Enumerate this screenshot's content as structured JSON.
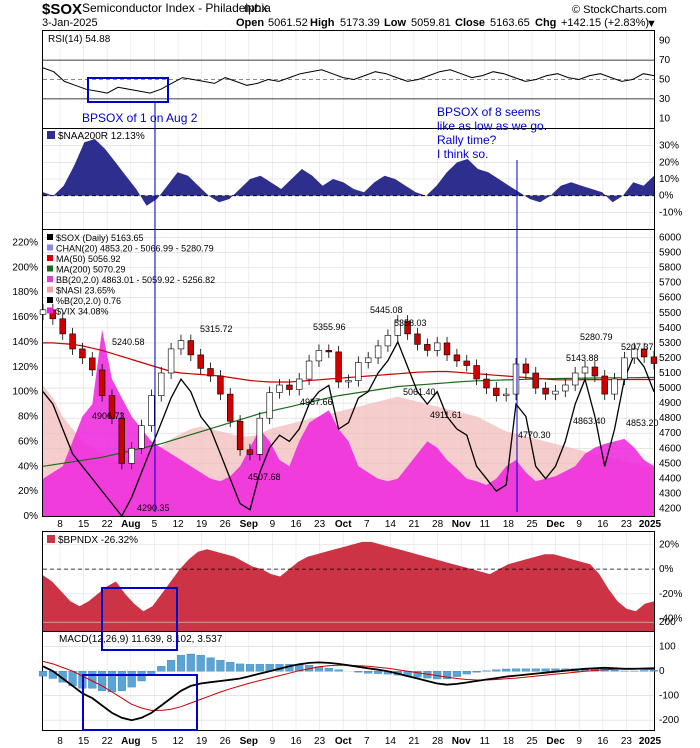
{
  "header": {
    "symbol": "$SOX",
    "name": "Semiconductor Index - Philadelphia",
    "exchange": "INDX",
    "date": "3-Jan-2025",
    "open_label": "Open",
    "open": "5061.52",
    "high_label": "High",
    "high": "5173.39",
    "low_label": "Low",
    "low": "5059.81",
    "close_label": "Close",
    "close": "5163.65",
    "chg_label": "Chg",
    "chg": "+142.15 (+2.83%)",
    "watermark": "© StockCharts.com",
    "down_arrow": "▼"
  },
  "annotations": {
    "left_note": "BPSOX of 1 on Aug 2",
    "right_note_lines": [
      "BPSOX of 8 seems",
      "like as low as we go.",
      "Rally time?",
      "I think so."
    ]
  },
  "x_axis_labels": [
    "8",
    "15",
    "22",
    "Aug",
    "5",
    "12",
    "19",
    "26",
    "Sep",
    "9",
    "16",
    "23",
    "Oct",
    "7",
    "14",
    "21",
    "28",
    "Nov",
    "11",
    "18",
    "25",
    "Dec",
    "9",
    "16",
    "23",
    "2025"
  ],
  "x_axis_bold": [
    "Aug",
    "Sep",
    "Oct",
    "Nov",
    "Dec",
    "2025"
  ],
  "colors": {
    "candle_up": "#ffffff",
    "candle_down": "#cc0000",
    "naa_fill": "#2e2e8f",
    "bpndx_fill": "#cc3344",
    "vix_fill": "#ee22dd",
    "macd_hist": "#5aa5d6",
    "annot_text": "#0000cc",
    "box": "#0000cc"
  },
  "chart_data": [
    {
      "panel": "rsi",
      "type": "line",
      "legend": "RSI(14) 54.88",
      "ylim": [
        0,
        100
      ],
      "y_ticks": [
        "90",
        "70",
        "50",
        "30",
        "10"
      ],
      "values": [
        62,
        58,
        48,
        44,
        40,
        38,
        36,
        42,
        40,
        38,
        36,
        40,
        46,
        52,
        50,
        48,
        46,
        52,
        48,
        44,
        46,
        50,
        48,
        52,
        56,
        58,
        60,
        56,
        52,
        50,
        54,
        58,
        56,
        52,
        48,
        50,
        54,
        58,
        60,
        56,
        52,
        54,
        58,
        56,
        52,
        48,
        50,
        54,
        56,
        52,
        50,
        54,
        56,
        52,
        48,
        50,
        56,
        54
      ]
    },
    {
      "panel": "naa200r",
      "type": "area",
      "legend": "$NAA200R 12.13%",
      "ylim": [
        -20,
        40
      ],
      "y_ticks": [
        "30%",
        "20%",
        "10%",
        "0%",
        "-10%"
      ],
      "values": [
        2,
        0,
        6,
        18,
        32,
        34,
        28,
        20,
        12,
        4,
        -6,
        -2,
        6,
        14,
        12,
        6,
        0,
        -4,
        -2,
        4,
        10,
        12,
        8,
        4,
        10,
        16,
        12,
        6,
        10,
        8,
        4,
        2,
        8,
        12,
        10,
        6,
        2,
        0,
        6,
        14,
        20,
        22,
        16,
        14,
        10,
        6,
        2,
        -2,
        -4,
        0,
        6,
        8,
        6,
        4,
        2,
        -4,
        0,
        8,
        6,
        12
      ]
    },
    {
      "panel": "price",
      "type": "candlestick",
      "legend": [
        "$SOX (Daily) 5163.65",
        "CHAN(20) 4853.20 - 5066.99 - 5280.79",
        "MA(50) 5056.92",
        "MA(200) 5070.29",
        "BB(20,2.0) 4863.01 - 5059.92 - 5256.82",
        "$NASI 23.65%",
        "%B(20,2.0) 0.76",
        "$VIX 34.08%"
      ],
      "ylim": [
        4150,
        6050
      ],
      "y_ticks_right": [
        "6000",
        "5900",
        "5800",
        "5700",
        "5600",
        "5500",
        "5400",
        "5300",
        "5200",
        "5100",
        "5000",
        "4900",
        "4800",
        "4700",
        "4600",
        "4500",
        "4400",
        "4300",
        "4200"
      ],
      "y_ticks_left": [
        "220%",
        "200%",
        "180%",
        "160%",
        "140%",
        "120%",
        "100%",
        "80%",
        "60%",
        "40%",
        "20%",
        "0%"
      ],
      "price_labels": [
        "5315.72",
        "5240.58",
        "4906.73",
        "4290.35",
        "5355.96",
        "4507.68",
        "4987.66",
        "5445.08",
        "5358.03",
        "5061.40",
        "4911.61",
        "4770.30",
        "5143.88",
        "4863.40",
        "5280.79",
        "5207.37",
        "4853.20"
      ],
      "close": [
        5520,
        5460,
        5360,
        5260,
        5200,
        5120,
        4950,
        4800,
        4500,
        4600,
        4750,
        4950,
        5100,
        5260,
        5315,
        5220,
        5130,
        5080,
        4960,
        4780,
        4590,
        4560,
        4800,
        4970,
        5020,
        4990,
        5060,
        5180,
        5250,
        5240,
        5040,
        5050,
        5170,
        5200,
        5280,
        5350,
        5445,
        5360,
        5290,
        5250,
        5300,
        5220,
        5180,
        5150,
        5060,
        5000,
        4950,
        4960,
        5160,
        5100,
        5000,
        4960,
        4980,
        5020,
        5100,
        5140,
        5080,
        4960,
        5060,
        5200,
        5260,
        5207,
        5163
      ],
      "ma50": [
        5300,
        5300,
        5295,
        5290,
        5280,
        5265,
        5250,
        5230,
        5210,
        5190,
        5170,
        5150,
        5130,
        5110,
        5100,
        5095,
        5090,
        5085,
        5080,
        5070,
        5060,
        5050,
        5045,
        5040,
        5040,
        5040,
        5045,
        5050,
        5055,
        5060,
        5065,
        5070,
        5075,
        5080,
        5085,
        5090,
        5095,
        5100,
        5105,
        5108,
        5110,
        5110,
        5105,
        5100,
        5095,
        5090,
        5085,
        5080,
        5075,
        5070,
        5065,
        5060,
        5055,
        5055,
        5055,
        5056,
        5056,
        5056,
        5056,
        5057,
        5057,
        5057,
        5057
      ],
      "ma200": [
        4480,
        4490,
        4500,
        4510,
        4520,
        4530,
        4540,
        4555,
        4570,
        4585,
        4600,
        4615,
        4630,
        4650,
        4670,
        4690,
        4710,
        4730,
        4750,
        4770,
        4790,
        4810,
        4830,
        4845,
        4860,
        4875,
        4890,
        4905,
        4920,
        4935,
        4950,
        4960,
        4970,
        4980,
        4990,
        5000,
        5010,
        5015,
        5020,
        5025,
        5030,
        5035,
        5040,
        5045,
        5048,
        5050,
        5052,
        5054,
        5056,
        5058,
        5060,
        5062,
        5063,
        5064,
        5065,
        5066,
        5067,
        5068,
        5068,
        5069,
        5069,
        5070,
        5070
      ],
      "nasi_pct": [
        105,
        95,
        80,
        70,
        60,
        55,
        50,
        45,
        42,
        44,
        48,
        52,
        56,
        62,
        66,
        70,
        72,
        70,
        68,
        66,
        64,
        64,
        66,
        70,
        72,
        74,
        76,
        78,
        80,
        82,
        84,
        86,
        88,
        90,
        92,
        94,
        96,
        94,
        92,
        90,
        88,
        86,
        84,
        82,
        80,
        76,
        72,
        68,
        66,
        64,
        62,
        60,
        58,
        56,
        54,
        52,
        50,
        48,
        46,
        44,
        42,
        40,
        38
      ],
      "vix_pct": [
        30,
        35,
        40,
        60,
        80,
        90,
        150,
        110,
        95,
        80,
        70,
        60,
        55,
        50,
        45,
        40,
        35,
        30,
        28,
        32,
        40,
        55,
        70,
        60,
        45,
        40,
        60,
        75,
        80,
        85,
        70,
        60,
        40,
        35,
        30,
        28,
        30,
        40,
        50,
        60,
        55,
        45,
        38,
        30,
        28,
        25,
        30,
        40,
        45,
        35,
        28,
        30,
        32,
        36,
        40,
        50,
        55,
        58,
        60,
        62,
        55,
        45,
        40
      ],
      "pctb": [
        100,
        90,
        70,
        50,
        40,
        30,
        20,
        10,
        0,
        15,
        35,
        55,
        75,
        95,
        110,
        100,
        80,
        70,
        50,
        30,
        10,
        5,
        35,
        55,
        65,
        60,
        70,
        90,
        100,
        105,
        70,
        75,
        95,
        100,
        115,
        125,
        140,
        120,
        100,
        90,
        100,
        80,
        70,
        65,
        40,
        30,
        20,
        25,
        90,
        80,
        40,
        30,
        40,
        60,
        90,
        110,
        80,
        40,
        70,
        110,
        130,
        120,
        100
      ]
    },
    {
      "panel": "bpndx",
      "type": "area",
      "legend": "$BPNDX -26.32%",
      "ylim": [
        -50,
        30
      ],
      "y_ticks": [
        "20%",
        "0%",
        "-20%",
        "-40%"
      ],
      "values": [
        -5,
        -10,
        -18,
        -26,
        -30,
        -26,
        -20,
        -14,
        -10,
        -20,
        -28,
        -34,
        -30,
        -20,
        -10,
        0,
        8,
        14,
        16,
        14,
        12,
        10,
        6,
        2,
        0,
        -4,
        -6,
        0,
        6,
        10,
        12,
        14,
        16,
        18,
        20,
        22,
        22,
        20,
        18,
        16,
        14,
        12,
        10,
        8,
        6,
        4,
        2,
        0,
        -2,
        -4,
        0,
        4,
        6,
        8,
        10,
        12,
        12,
        10,
        8,
        6,
        4,
        -4,
        -16,
        -26,
        -32,
        -34,
        -28,
        -26
      ]
    },
    {
      "panel": "macd",
      "type": "line",
      "legend": "MACD(12,26,9) 11.639, 8.102, 3.537",
      "ylim": [
        -240,
        160
      ],
      "y_ticks": [
        "200",
        "100",
        "0",
        "-100",
        "-200"
      ],
      "macd": [
        20,
        0,
        -30,
        -60,
        -90,
        -110,
        -140,
        -170,
        -190,
        -200,
        -190,
        -170,
        -140,
        -110,
        -80,
        -60,
        -50,
        -45,
        -40,
        -35,
        -30,
        -20,
        -10,
        0,
        10,
        20,
        28,
        34,
        36,
        34,
        30,
        24,
        18,
        12,
        6,
        0,
        -10,
        -20,
        -30,
        -40,
        -50,
        -55,
        -52,
        -46,
        -40,
        -34,
        -28,
        -22,
        -18,
        -14,
        -10,
        -6,
        -2,
        2,
        6,
        10,
        12,
        14,
        12,
        10,
        10,
        11,
        12
      ],
      "signal": [
        40,
        30,
        15,
        0,
        -20,
        -40,
        -60,
        -85,
        -110,
        -135,
        -150,
        -160,
        -160,
        -155,
        -145,
        -130,
        -115,
        -100,
        -85,
        -72,
        -60,
        -48,
        -38,
        -28,
        -18,
        -8,
        2,
        10,
        18,
        22,
        24,
        24,
        22,
        20,
        16,
        12,
        6,
        0,
        -6,
        -12,
        -18,
        -24,
        -30,
        -34,
        -36,
        -36,
        -34,
        -31,
        -28,
        -24,
        -20,
        -16,
        -12,
        -8,
        -4,
        0,
        3,
        6,
        8,
        9,
        9,
        8,
        8
      ],
      "histogram": [
        -20,
        -30,
        -45,
        -60,
        -70,
        -70,
        -80,
        -85,
        -80,
        -65,
        -40,
        -10,
        20,
        45,
        65,
        70,
        65,
        55,
        45,
        37,
        30,
        28,
        28,
        28,
        28,
        28,
        26,
        24,
        18,
        12,
        6,
        0,
        -4,
        -8,
        -10,
        -12,
        -16,
        -20,
        -24,
        -28,
        -32,
        -31,
        -22,
        -12,
        -4,
        2,
        6,
        9,
        10,
        10,
        10,
        10,
        10,
        10,
        10,
        10,
        9,
        8,
        4,
        1,
        1,
        3,
        4
      ]
    }
  ]
}
